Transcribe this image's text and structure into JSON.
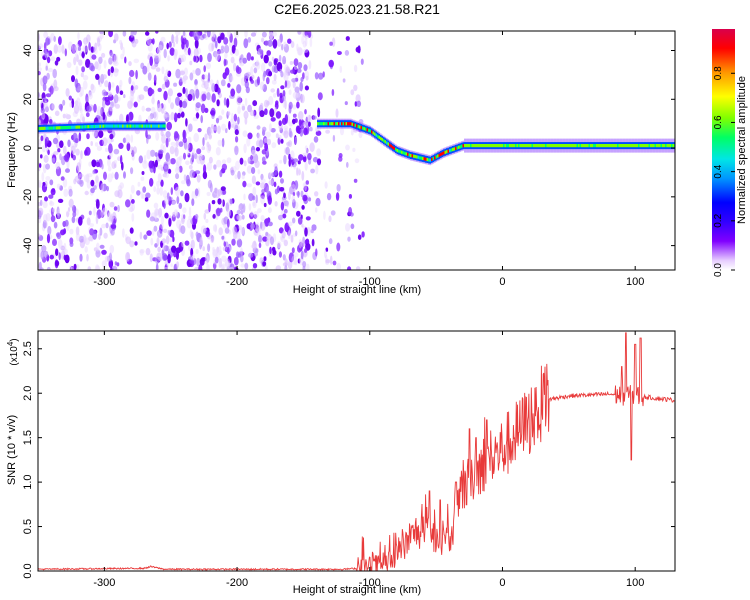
{
  "title": "C2E6.2025.023.21.58.R21",
  "chart_data": [
    {
      "type": "heatmap",
      "xlabel": "Height of straight line (km)",
      "ylabel": "Frequency (Hz)",
      "xlim": [
        -350,
        130
      ],
      "ylim": [
        -50,
        48
      ],
      "x_ticks": [
        -300,
        -200,
        -100,
        0,
        100
      ],
      "y_ticks": [
        -40,
        -20,
        0,
        20,
        40
      ],
      "colorbar": {
        "label": "Normalized spectral amplitude",
        "range": [
          0.0,
          0.98
        ],
        "ticks": [
          0.0,
          0.2,
          0.4,
          0.6,
          0.8
        ],
        "tick_labels": [
          "0.0",
          "0.2",
          "0.4",
          "0.6",
          "0.8"
        ],
        "colors": [
          "#ffffff",
          "#e6ccff",
          "#8000ff",
          "#3200ff",
          "#0000ff",
          "#0096ff",
          "#00e6e6",
          "#00ff64",
          "#7fff00",
          "#ffff00",
          "#ff9600",
          "#ff0000",
          "#d9004c"
        ]
      },
      "noise_region_x": [
        -350,
        -105
      ],
      "ridge": [
        {
          "x": -350,
          "y": 8
        },
        {
          "x": -300,
          "y": 9
        },
        {
          "x": -260,
          "y": 9
        },
        {
          "x": -140,
          "y": 10
        },
        {
          "x": -115,
          "y": 10
        },
        {
          "x": -100,
          "y": 7
        },
        {
          "x": -90,
          "y": 3
        },
        {
          "x": -80,
          "y": -1
        },
        {
          "x": -70,
          "y": -3
        },
        {
          "x": -55,
          "y": -5
        },
        {
          "x": -45,
          "y": -2
        },
        {
          "x": -30,
          "y": 1
        },
        {
          "x": 0,
          "y": 1
        },
        {
          "x": 50,
          "y": 1
        },
        {
          "x": 130,
          "y": 1
        }
      ]
    },
    {
      "type": "line",
      "xlabel": "Height of straight line (km)",
      "ylabel": "SNR (10 * v/v)",
      "y_scale_label": "(x10",
      "y_scale_exp": "4",
      "series_color": "#e83a3a",
      "xlim": [
        -350,
        130
      ],
      "ylim": [
        0,
        2.7
      ],
      "x_ticks": [
        -300,
        -200,
        -100,
        0,
        100
      ],
      "y_ticks": [
        0.0,
        0.5,
        1.0,
        1.5,
        2.0,
        2.5
      ],
      "y_tick_labels": [
        "0.0",
        "0.5",
        "1.0",
        "1.5",
        "2.0",
        "2.5"
      ],
      "envelope": [
        {
          "x": -350,
          "y": 0.02
        },
        {
          "x": -270,
          "y": 0.03
        },
        {
          "x": -265,
          "y": 0.05
        },
        {
          "x": -255,
          "y": 0.02
        },
        {
          "x": -120,
          "y": 0.02
        },
        {
          "x": -100,
          "y": 0.04
        },
        {
          "x": -85,
          "y": 0.1
        },
        {
          "x": -75,
          "y": 0.25
        },
        {
          "x": -65,
          "y": 0.45
        },
        {
          "x": -55,
          "y": 0.4
        },
        {
          "x": -45,
          "y": 0.35
        },
        {
          "x": -38,
          "y": 0.4
        },
        {
          "x": -30,
          "y": 0.9
        },
        {
          "x": -22,
          "y": 1.1
        },
        {
          "x": -15,
          "y": 1.2
        },
        {
          "x": -5,
          "y": 1.3
        },
        {
          "x": 5,
          "y": 1.45
        },
        {
          "x": 15,
          "y": 1.6
        },
        {
          "x": 25,
          "y": 1.8
        },
        {
          "x": 35,
          "y": 1.93
        },
        {
          "x": 50,
          "y": 1.97
        },
        {
          "x": 80,
          "y": 1.99
        },
        {
          "x": 100,
          "y": 1.97
        },
        {
          "x": 130,
          "y": 1.92
        }
      ],
      "spikes": [
        {
          "x": -55,
          "y": 0.9
        },
        {
          "x": -47,
          "y": 0.8
        },
        {
          "x": -35,
          "y": 1.0
        },
        {
          "x": -25,
          "y": 1.6
        },
        {
          "x": -20,
          "y": 1.5
        },
        {
          "x": -12,
          "y": 1.7
        },
        {
          "x": 90,
          "y": 2.3
        },
        {
          "x": 93,
          "y": 2.68
        },
        {
          "x": 97,
          "y": 1.25
        },
        {
          "x": 100,
          "y": 2.55
        },
        {
          "x": 104,
          "y": 2.62
        }
      ]
    }
  ]
}
